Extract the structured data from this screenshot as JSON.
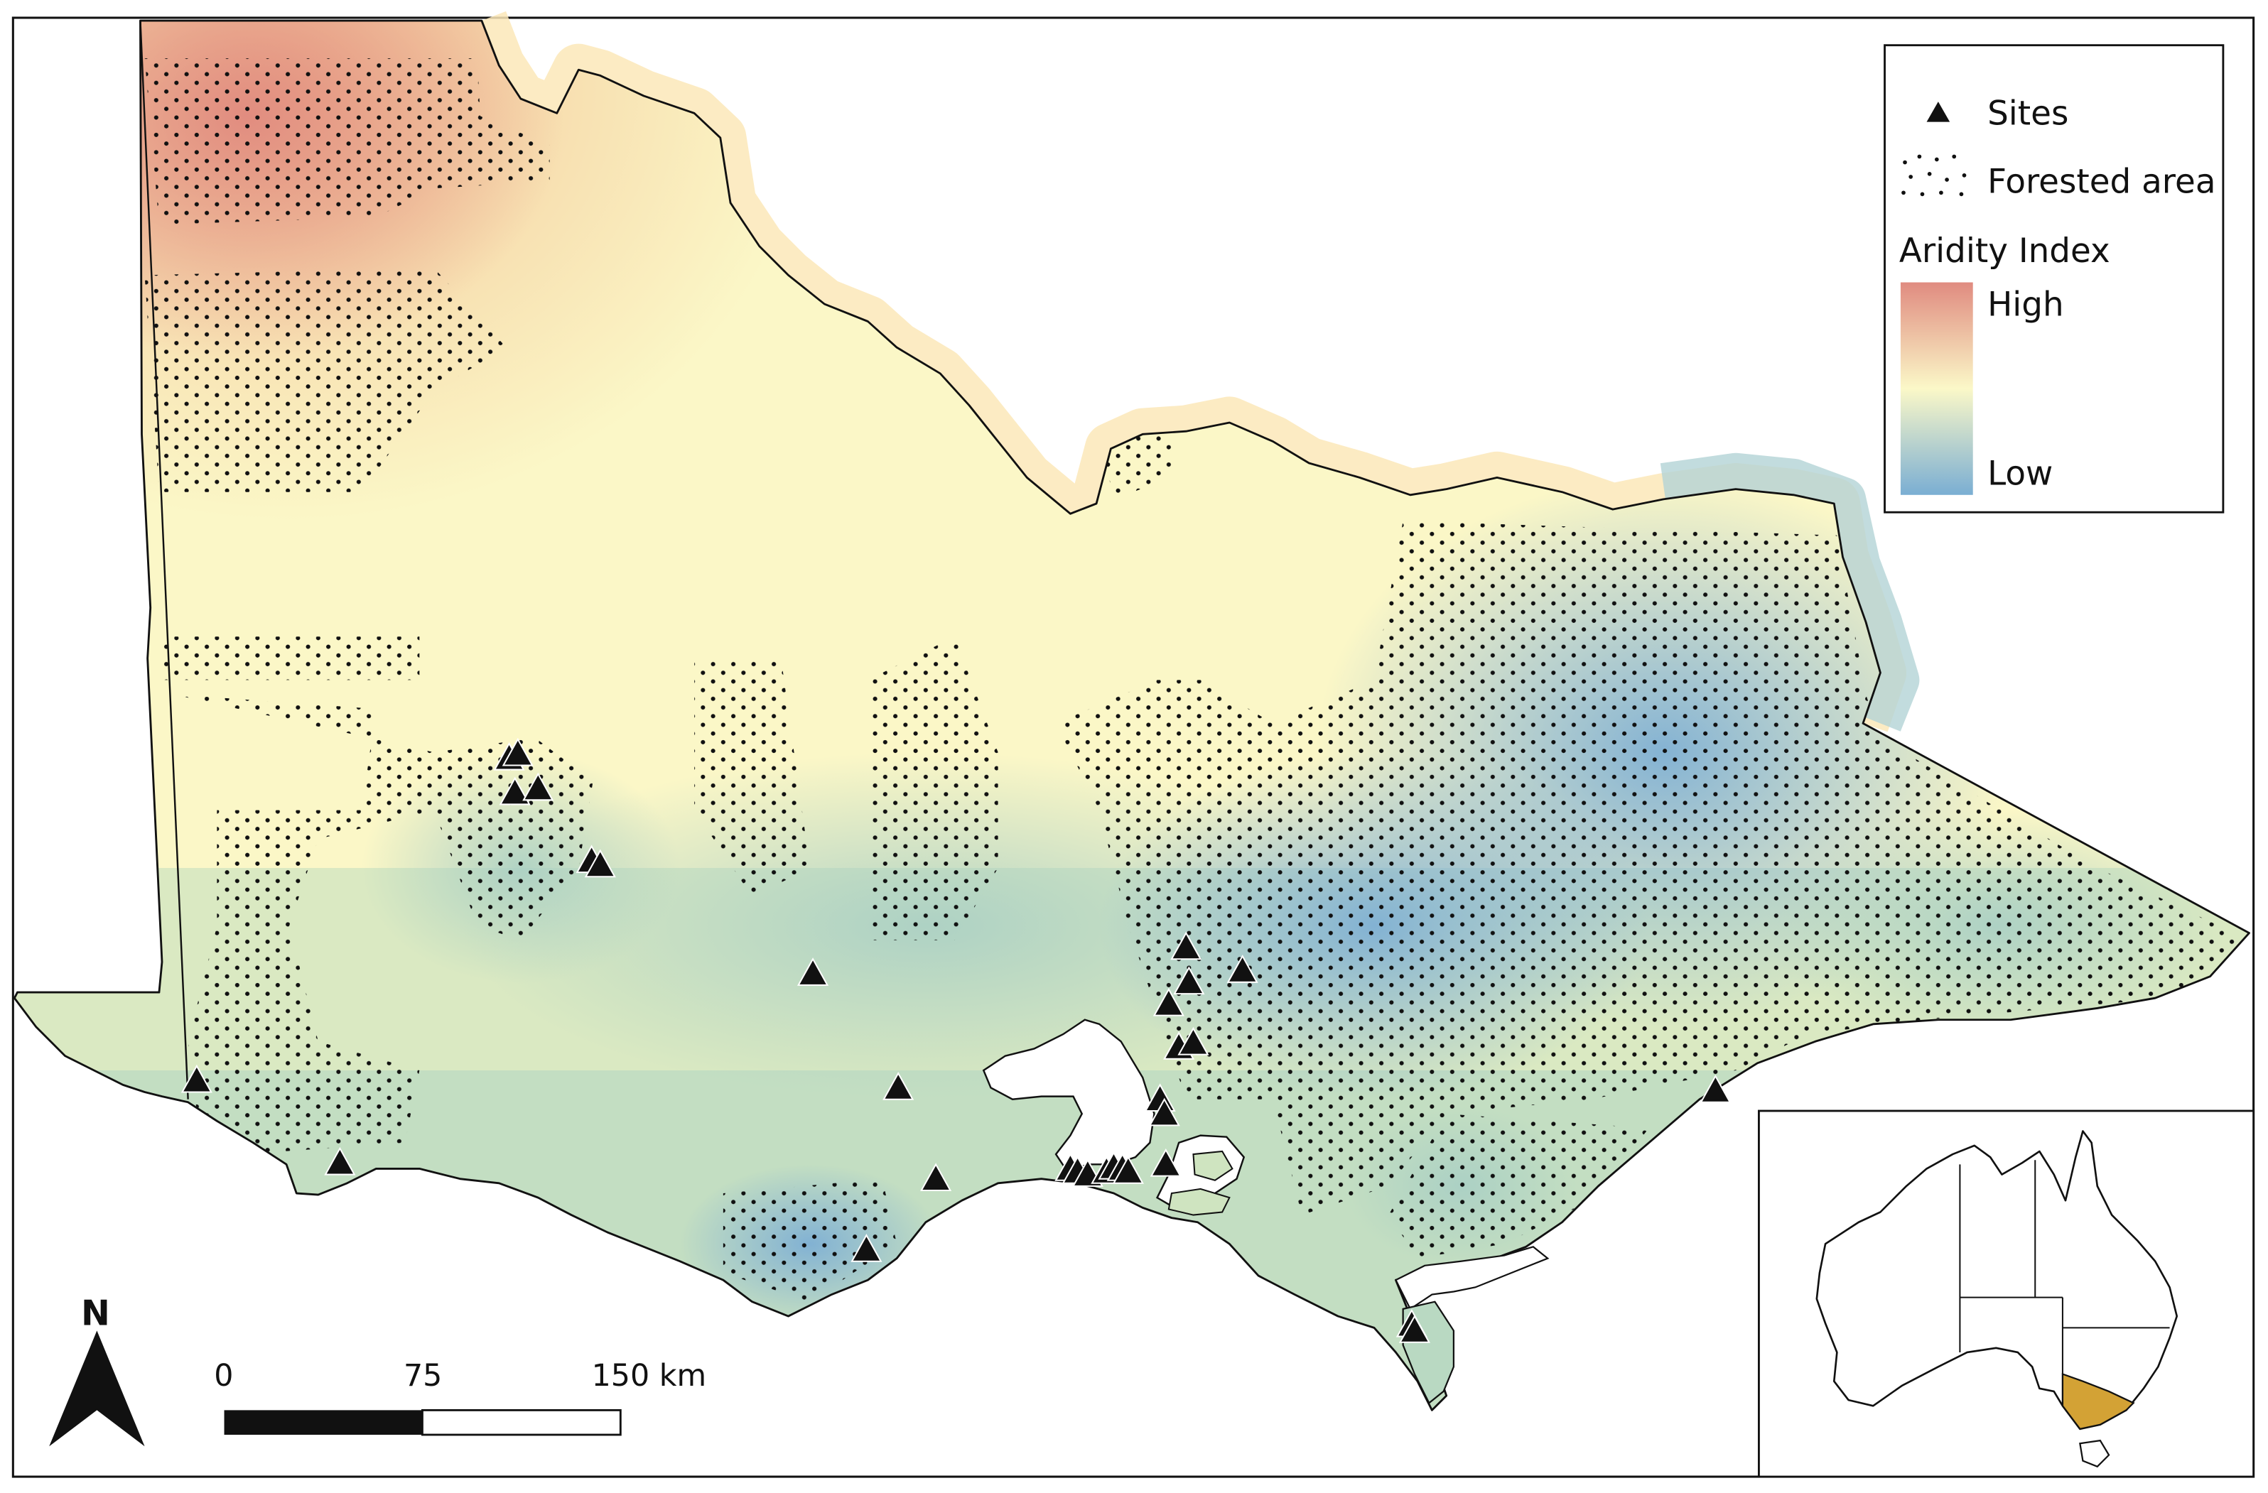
{
  "legend": {
    "sites_label": "Sites",
    "forest_label": "Forested area",
    "aridity_title": "Aridity Index",
    "aridity_high": "High",
    "aridity_low": "Low"
  },
  "colors": {
    "aridity_high": "#e08b80",
    "aridity_mid": "#fbf8c8",
    "aridity_low": "#7aaed3",
    "state_highlight": "#d3a235",
    "outline": "#111111"
  },
  "north_arrow": {
    "label": "N"
  },
  "scale_bar": {
    "ticks": [
      "0",
      "75",
      "150 km"
    ]
  },
  "inset": {
    "highlighted_state": "Victoria"
  },
  "sites_count": 36
}
